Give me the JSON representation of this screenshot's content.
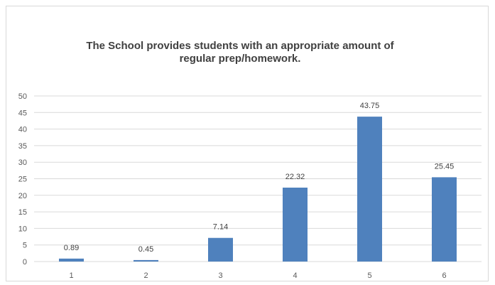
{
  "chart_data": {
    "type": "bar",
    "title_lines": [
      "The School provides students with an appropriate amount of",
      "regular prep/homework."
    ],
    "categories": [
      "1",
      "2",
      "3",
      "4",
      "5",
      "6"
    ],
    "values": [
      0.89,
      0.45,
      7.14,
      22.32,
      43.75,
      25.45
    ],
    "data_labels": [
      "0.89",
      "0.45",
      "7.14",
      "22.32",
      "43.75",
      "25.45"
    ],
    "xlabel": "",
    "ylabel": "",
    "ylim": [
      0,
      50
    ],
    "yticks": [
      0,
      5,
      10,
      15,
      20,
      25,
      30,
      35,
      40,
      45,
      50
    ],
    "grid": true,
    "bar_color": "#4f81bd",
    "grid_color": "#d9d9d9",
    "legend": false
  }
}
